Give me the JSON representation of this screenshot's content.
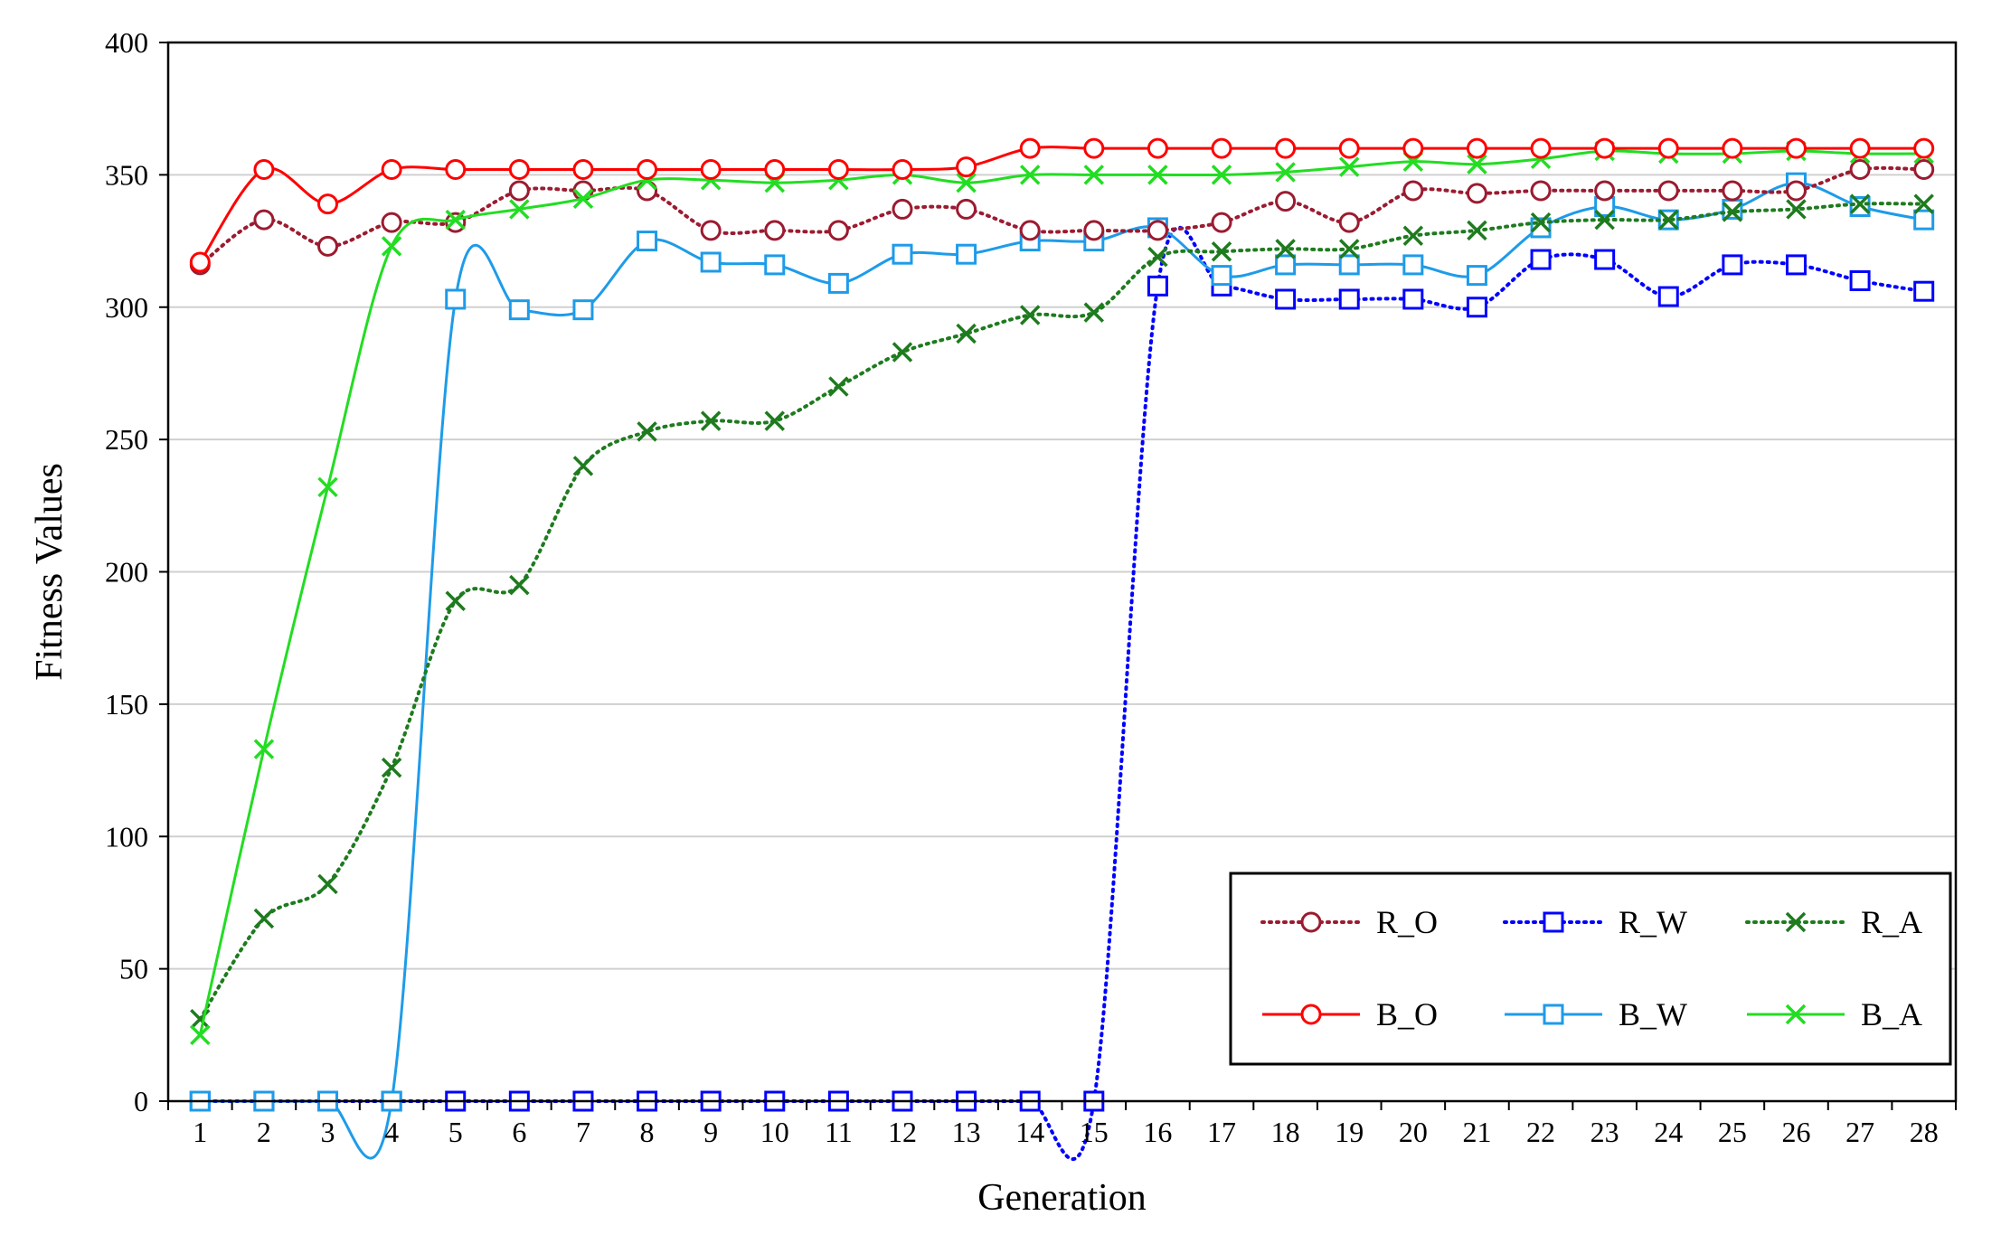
{
  "chart_data": {
    "type": "line",
    "xlabel": "Generation",
    "ylabel": "Fitness Values",
    "ylim": [
      0,
      400
    ],
    "yticks": [
      0,
      50,
      100,
      150,
      200,
      250,
      300,
      350,
      400
    ],
    "x": [
      1,
      2,
      3,
      4,
      5,
      6,
      7,
      8,
      9,
      10,
      11,
      12,
      13,
      14,
      15,
      16,
      17,
      18,
      19,
      20,
      21,
      22,
      23,
      24,
      25,
      26,
      27,
      28
    ],
    "grid": "horizontal",
    "legend_position": "bottom-right",
    "series": [
      {
        "name": "R_O",
        "color": "#9b1b30",
        "line": "dotted",
        "marker": "circle",
        "values": [
          316,
          333,
          323,
          332,
          332,
          344,
          344,
          344,
          329,
          329,
          329,
          337,
          337,
          329,
          329,
          329,
          332,
          340,
          332,
          344,
          343,
          344,
          344,
          344,
          344,
          344,
          352,
          352
        ]
      },
      {
        "name": "R_W",
        "color": "#0000ff",
        "line": "dotted",
        "marker": "square",
        "values": [
          0,
          0,
          0,
          0,
          0,
          0,
          0,
          0,
          0,
          0,
          0,
          0,
          0,
          0,
          0,
          308,
          308,
          303,
          303,
          303,
          300,
          318,
          318,
          304,
          316,
          316,
          310,
          306
        ]
      },
      {
        "name": "R_A",
        "color": "#1e7b1e",
        "line": "dotted",
        "marker": "x",
        "values": [
          31,
          69,
          82,
          126,
          189,
          195,
          240,
          253,
          257,
          257,
          270,
          283,
          290,
          297,
          298,
          319,
          321,
          322,
          322,
          327,
          329,
          332,
          333,
          333,
          336,
          337,
          339,
          339
        ]
      },
      {
        "name": "B_O",
        "color": "#ff0000",
        "line": "solid",
        "marker": "circle",
        "values": [
          317,
          352,
          339,
          352,
          352,
          352,
          352,
          352,
          352,
          352,
          352,
          352,
          353,
          360,
          360,
          360,
          360,
          360,
          360,
          360,
          360,
          360,
          360,
          360,
          360,
          360,
          360,
          360
        ]
      },
      {
        "name": "B_W",
        "color": "#1e9be9",
        "line": "solid",
        "marker": "square",
        "values": [
          0,
          0,
          0,
          0,
          303,
          299,
          299,
          325,
          317,
          316,
          309,
          320,
          320,
          325,
          325,
          330,
          312,
          316,
          316,
          316,
          312,
          330,
          338,
          333,
          337,
          347,
          338,
          333
        ]
      },
      {
        "name": "B_A",
        "color": "#22dd22",
        "line": "solid",
        "marker": "x",
        "values": [
          25,
          133,
          232,
          323,
          333,
          337,
          341,
          348,
          348,
          347,
          348,
          350,
          347,
          350,
          350,
          350,
          350,
          351,
          353,
          355,
          354,
          356,
          359,
          358,
          358,
          359,
          358,
          358
        ]
      }
    ],
    "legend_order": [
      "R_O",
      "R_W",
      "R_A",
      "B_O",
      "B_W",
      "B_A"
    ]
  }
}
